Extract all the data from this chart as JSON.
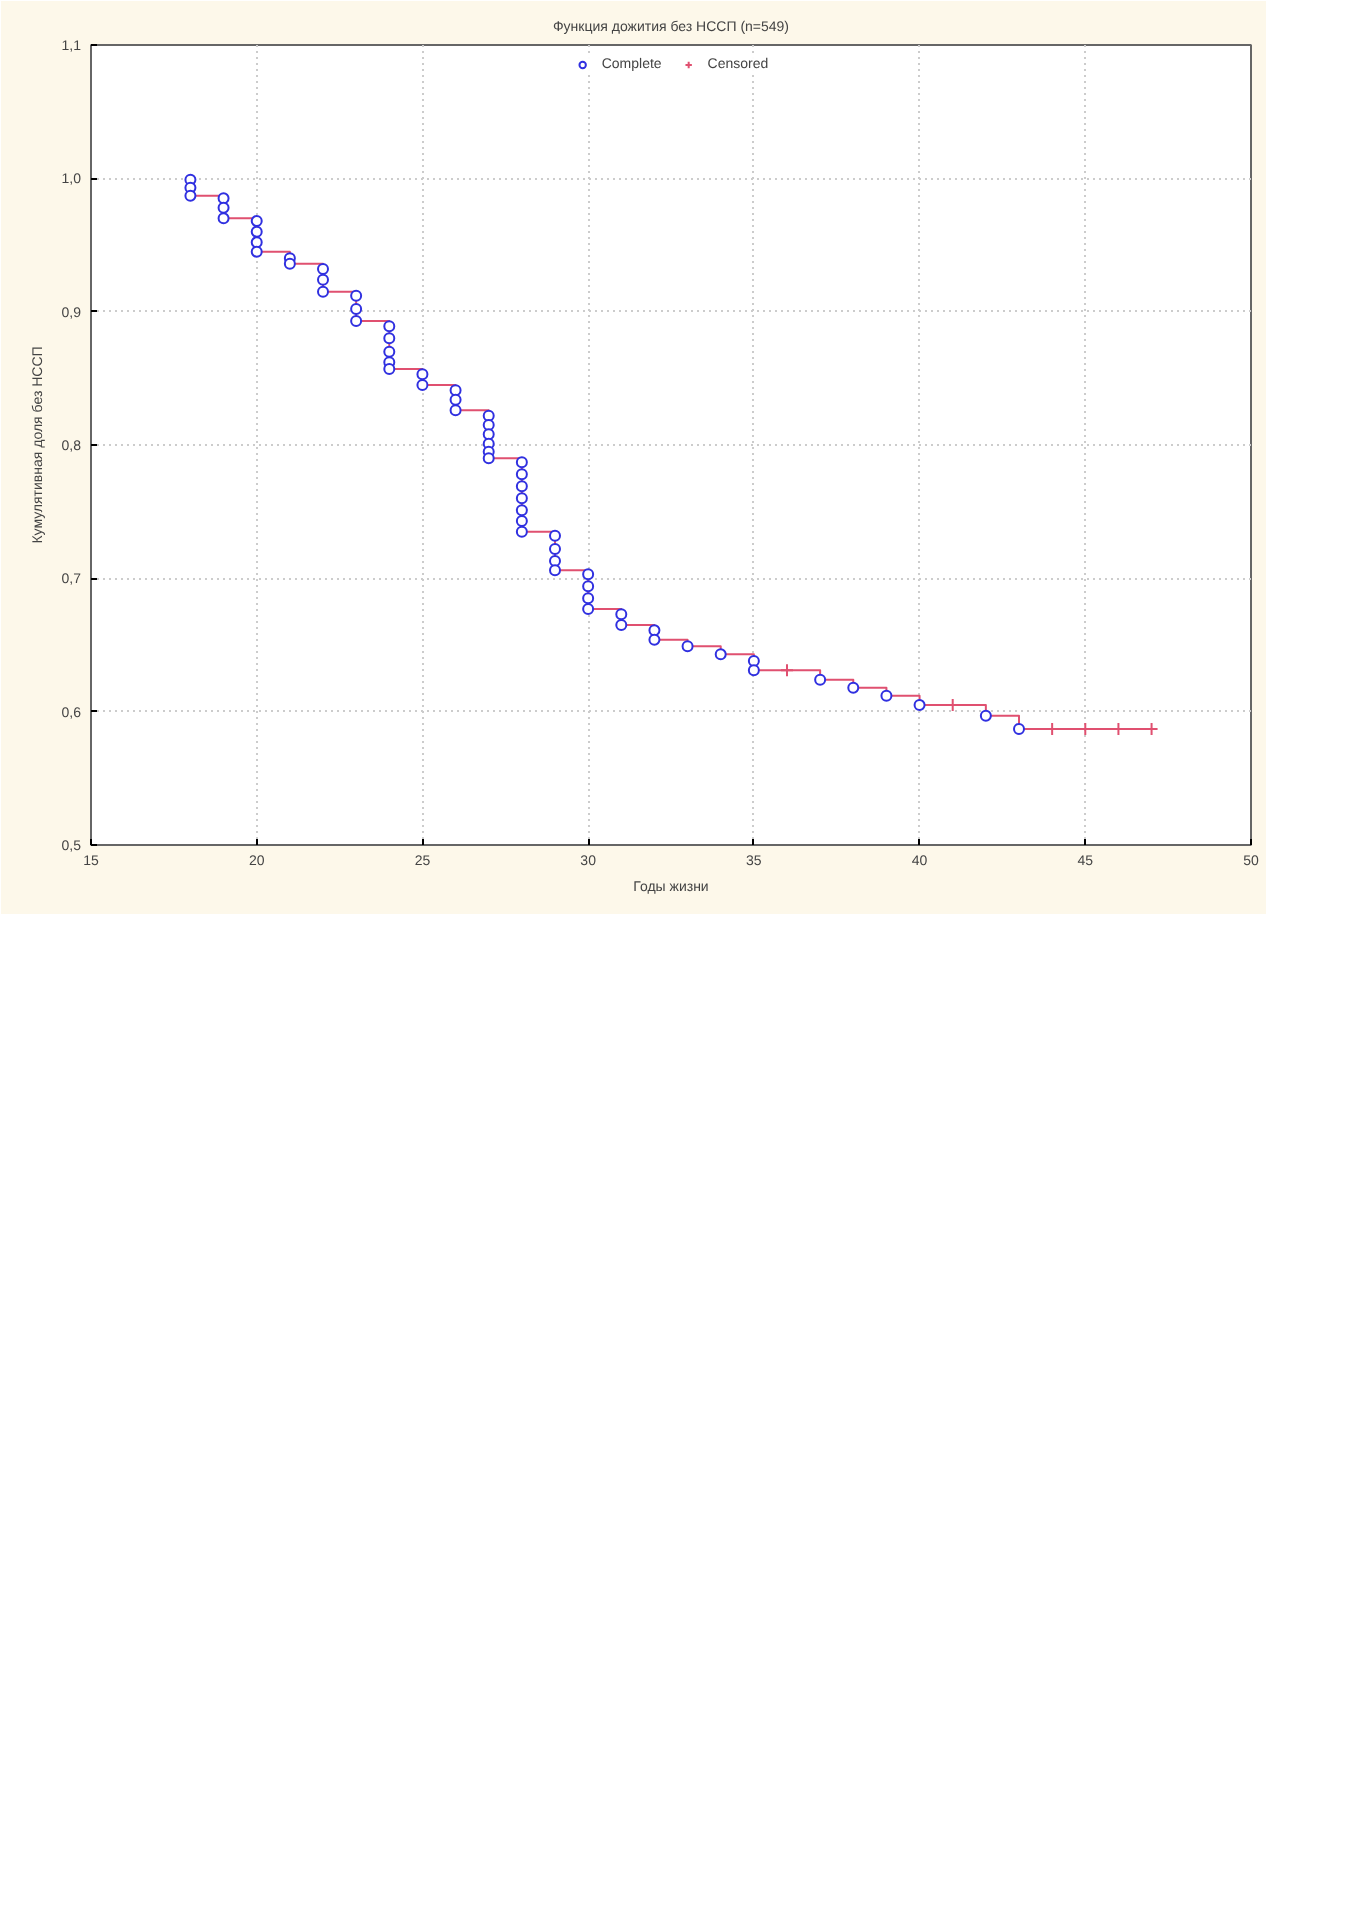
{
  "chart_data": {
    "type": "scatter",
    "title": "Функция дожития без НССП (n=549)",
    "xlabel": "Годы жизни",
    "ylabel": "Кумулятивная доля без НССП",
    "xlim": [
      15,
      50
    ],
    "ylim": [
      0.5,
      1.1
    ],
    "xticks": [
      15,
      20,
      25,
      30,
      35,
      40,
      45,
      50
    ],
    "yticks": [
      {
        "value": 0.5,
        "label": "0,5"
      },
      {
        "value": 0.6,
        "label": "0,6"
      },
      {
        "value": 0.7,
        "label": "0,7"
      },
      {
        "value": 0.8,
        "label": "0,8"
      },
      {
        "value": 0.9,
        "label": "0,9"
      },
      {
        "value": 1.0,
        "label": "1,0"
      },
      {
        "value": 1.1,
        "label": "1,1"
      }
    ],
    "grid": true,
    "legend": "top",
    "series": [
      {
        "type": "step",
        "color": "#e05070",
        "line_style": "solid",
        "marker": "none",
        "x": [
          18,
          19,
          20,
          21,
          22,
          23,
          24,
          25,
          26,
          27,
          28,
          29,
          30,
          31,
          32,
          33,
          34,
          35,
          36,
          37,
          38,
          39,
          40,
          41,
          42,
          43,
          44,
          45,
          46,
          47
        ],
        "values": [
          0.987,
          0.97,
          0.945,
          0.936,
          0.915,
          0.893,
          0.857,
          0.845,
          0.826,
          0.79,
          0.735,
          0.706,
          0.677,
          0.665,
          0.654,
          0.649,
          0.643,
          0.631,
          0.631,
          0.624,
          0.618,
          0.612,
          0.605,
          0.605,
          0.597,
          0.587,
          0.587,
          0.587,
          0.587,
          0.587
        ]
      },
      {
        "name": "Complete",
        "color": "#3030e0",
        "marker": "circle",
        "x": [
          18,
          18,
          18,
          19,
          19,
          19,
          20,
          20,
          20,
          20,
          21,
          21,
          22,
          22,
          22,
          23,
          23,
          23,
          24,
          24,
          24,
          24,
          24,
          25,
          25,
          26,
          26,
          26,
          27,
          27,
          27,
          27,
          27,
          27,
          28,
          28,
          28,
          28,
          28,
          28,
          28,
          29,
          29,
          29,
          29,
          30,
          30,
          30,
          30,
          31,
          31,
          32,
          32,
          33,
          34,
          35,
          35,
          37,
          38,
          39,
          40,
          42,
          43
        ],
        "values": [
          0.999,
          0.993,
          0.987,
          0.985,
          0.978,
          0.97,
          0.968,
          0.96,
          0.952,
          0.945,
          0.94,
          0.936,
          0.932,
          0.924,
          0.915,
          0.912,
          0.902,
          0.893,
          0.889,
          0.88,
          0.87,
          0.862,
          0.857,
          0.853,
          0.845,
          0.841,
          0.834,
          0.826,
          0.822,
          0.815,
          0.808,
          0.801,
          0.795,
          0.79,
          0.787,
          0.778,
          0.769,
          0.76,
          0.751,
          0.743,
          0.735,
          0.732,
          0.722,
          0.713,
          0.706,
          0.703,
          0.694,
          0.685,
          0.677,
          0.673,
          0.665,
          0.661,
          0.654,
          0.649,
          0.643,
          0.638,
          0.631,
          0.624,
          0.618,
          0.612,
          0.605,
          0.597,
          0.587
        ]
      },
      {
        "name": "Censored",
        "color": "#e05070",
        "marker": "cross",
        "x": [
          36,
          41,
          44,
          45,
          46,
          47
        ],
        "values": [
          0.631,
          0.605,
          0.587,
          0.587,
          0.587,
          0.587
        ]
      }
    ]
  }
}
